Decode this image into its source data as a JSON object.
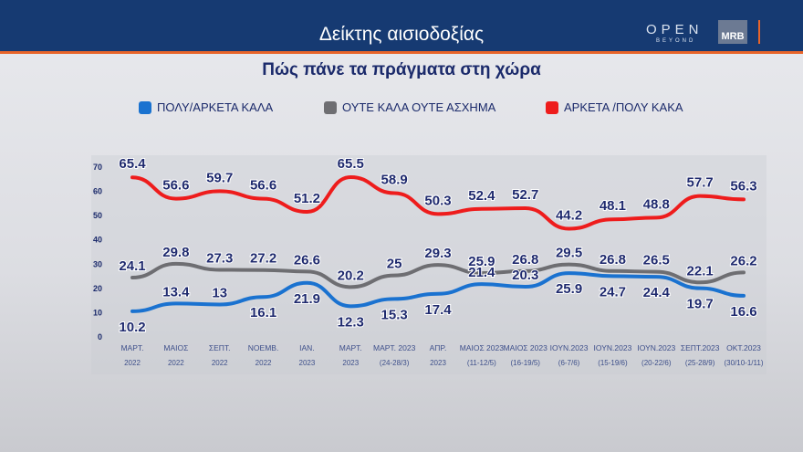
{
  "header": {
    "title": "Δείκτης αισιοδοξίας",
    "logo_open": "OPEN",
    "logo_beyond": "BEYOND",
    "logo_mrb": "MRB"
  },
  "subtitle": "Πώς πάνε τα πράγματα στη χώρα",
  "chart_data": {
    "type": "line",
    "ylim": [
      0,
      70
    ],
    "yticks": [
      0,
      10,
      20,
      30,
      40,
      50,
      60,
      70
    ],
    "grid": false,
    "legend_position": "top",
    "categories": [
      [
        "ΜΑΡΤ.",
        "2022"
      ],
      [
        "ΜΑΙΟΣ",
        "2022"
      ],
      [
        "ΣΕΠΤ.",
        "2022"
      ],
      [
        "ΝΟΕΜΒ.",
        "2022"
      ],
      [
        "ΙΑΝ.",
        "2023"
      ],
      [
        "ΜΑΡΤ.",
        "2023"
      ],
      [
        "ΜΑΡΤ. 2023",
        "(24-28/3)"
      ],
      [
        "ΑΠΡ.",
        "2023"
      ],
      [
        "ΜΑΙΟΣ 2023",
        "(11-12/5)"
      ],
      [
        "ΜΑΙΟΣ 2023",
        "(16-19/5)"
      ],
      [
        "ΙΟΥΝ.2023",
        "(6-7/6)"
      ],
      [
        "ΙΟΥΝ.2023",
        "(15-19/6)"
      ],
      [
        "ΙΟΥΝ.2023",
        "(20-22/6)"
      ],
      [
        "ΣΕΠΤ.2023",
        "(25-28/9)"
      ],
      [
        "ΟΚΤ.2023",
        "(30/10-1/11)"
      ]
    ],
    "series": [
      {
        "name": "ΠΟΛΥ/ΑΡΚΕΤΑ ΚΑΛΑ",
        "color": "#1a72d0",
        "values": [
          10.2,
          13.4,
          13,
          16.1,
          21.9,
          12.3,
          15.3,
          17.4,
          21.4,
          20.3,
          25.9,
          24.7,
          24.4,
          19.7,
          16.6
        ]
      },
      {
        "name": "ΟΥΤΕ ΚΑΛΑ ΟΥΤΕ ΑΣΧΗΜΑ",
        "color": "#6e6e72",
        "values": [
          24.1,
          29.8,
          27.3,
          27.2,
          26.6,
          20.2,
          25,
          29.3,
          25.9,
          26.8,
          29.5,
          26.8,
          26.5,
          22.1,
          26.2
        ]
      },
      {
        "name": "ΑΡΚΕΤΑ /ΠΟΛΥ ΚΑΚΑ",
        "color": "#ee1c1c",
        "values": [
          65.4,
          56.6,
          59.7,
          56.6,
          51.2,
          65.5,
          58.9,
          50.3,
          52.4,
          52.7,
          44.2,
          48.1,
          48.8,
          57.7,
          56.3
        ]
      }
    ]
  }
}
